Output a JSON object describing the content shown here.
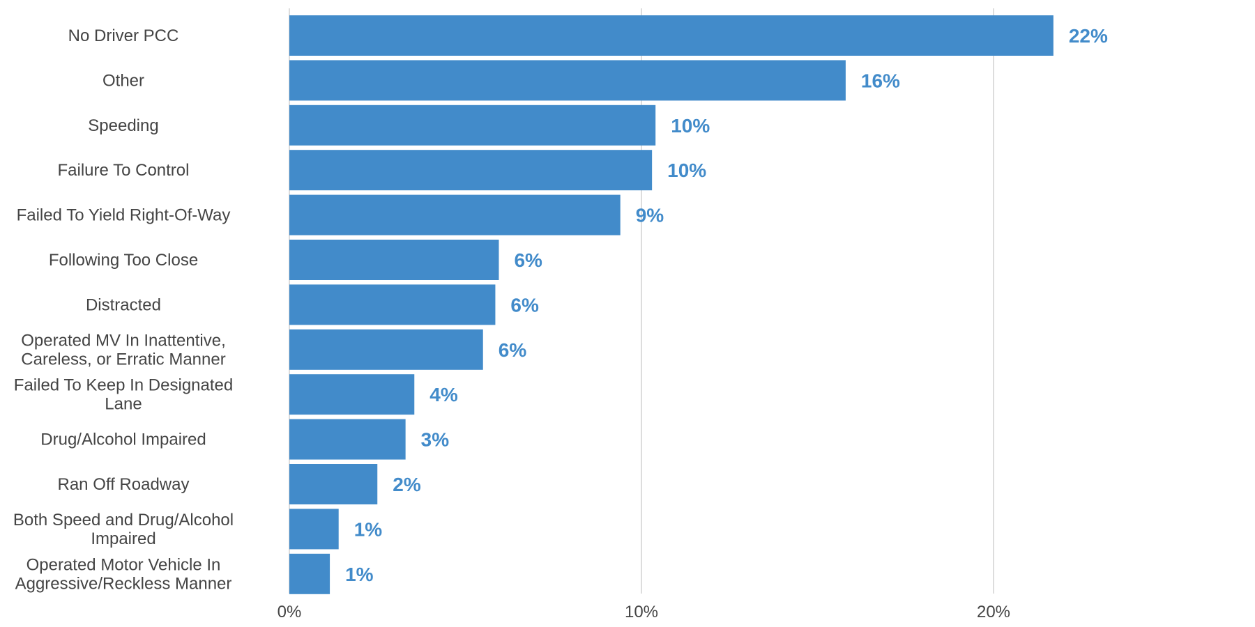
{
  "chart_data": {
    "type": "bar",
    "orientation": "horizontal",
    "categories": [
      [
        "No Driver PCC"
      ],
      [
        "Other"
      ],
      [
        "Speeding"
      ],
      [
        "Failure To Control"
      ],
      [
        "Failed To Yield Right-Of-Way"
      ],
      [
        "Following Too Close"
      ],
      [
        "Distracted"
      ],
      [
        "Operated MV In Inattentive,",
        "Careless, or Erratic Manner"
      ],
      [
        "Failed To Keep In Designated",
        "Lane"
      ],
      [
        "Drug/Alcohol Impaired"
      ],
      [
        "Ran Off Roadway"
      ],
      [
        "Both Speed and Drug/Alcohol",
        "Impaired"
      ],
      [
        "Operated Motor Vehicle In",
        "Aggressive/Reckless Manner"
      ]
    ],
    "values": [
      21.7,
      15.8,
      10.4,
      10.3,
      9.4,
      5.95,
      5.85,
      5.5,
      3.55,
      3.3,
      2.5,
      1.4,
      1.15
    ],
    "data_labels": [
      "22%",
      "16%",
      "10%",
      "10%",
      "9%",
      "6%",
      "6%",
      "6%",
      "4%",
      "3%",
      "2%",
      "1%",
      "1%"
    ],
    "x_ticks": [
      0,
      10,
      20
    ],
    "x_tick_labels": [
      "0%",
      "10%",
      "20%"
    ],
    "xlim": [
      0,
      27
    ],
    "xlabel": "",
    "ylabel": "",
    "title": "",
    "grid": "vertical",
    "legend": "none",
    "bar_color": "#428BCA",
    "label_color": "#428BCA"
  }
}
